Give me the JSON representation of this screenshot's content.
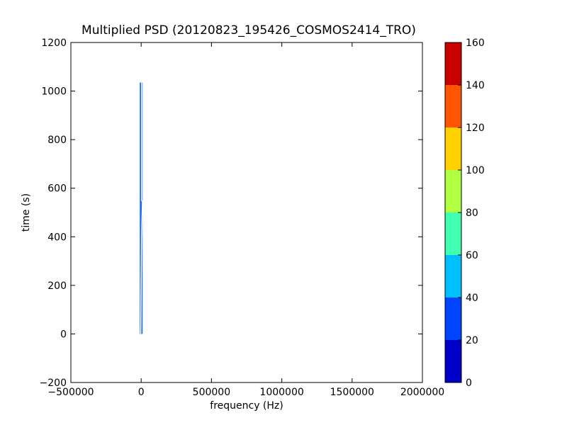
{
  "chart_data": {
    "type": "heatmap",
    "title": "Multiplied PSD (20120823_195426_COSMOS2414_TRO)",
    "xlabel": "frequency (Hz)",
    "ylabel": "time (s)",
    "xlim": [
      -500000,
      2000000
    ],
    "ylim": [
      -200,
      1200
    ],
    "xticks": [
      -500000,
      0,
      500000,
      1000000,
      1500000,
      2000000
    ],
    "xtick_labels": [
      "−500000",
      "0",
      "500000",
      "1000000",
      "1500000",
      "2000000"
    ],
    "yticks": [
      -200,
      0,
      200,
      400,
      600,
      800,
      1000,
      1200
    ],
    "ytick_labels": [
      "−200",
      "0",
      "200",
      "400",
      "600",
      "800",
      "1000",
      "1200"
    ],
    "data_extent": {
      "x": [
        -10000,
        10000
      ],
      "y": [
        0,
        1035
      ]
    },
    "filled_band_level": [
      20,
      40
    ],
    "contour_line": {
      "color": "#ffffff",
      "points": [
        [
          3000,
          1035
        ],
        [
          3000,
          550
        ],
        [
          9000,
          545
        ],
        [
          3000,
          400
        ],
        [
          -3000,
          0
        ]
      ]
    },
    "colorbar": {
      "levels": [
        0,
        20,
        40,
        60,
        80,
        100,
        120,
        140,
        160
      ],
      "tick_labels": [
        "0",
        "20",
        "40",
        "60",
        "80",
        "100",
        "120",
        "140",
        "160"
      ],
      "colors": [
        "#0000c8",
        "#0044ff",
        "#00bfff",
        "#40ffb0",
        "#b0ff40",
        "#ffd000",
        "#ff5500",
        "#c80000"
      ]
    },
    "fill_color": "#1a6cff",
    "grid": false
  }
}
